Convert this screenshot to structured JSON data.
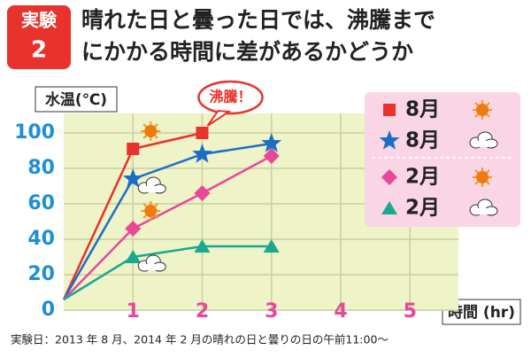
{
  "header": {
    "badge": "実験",
    "badge_number": "2",
    "title_lines": [
      "晴れた日と曇った日では、沸騰まで",
      "にかかる時間に差があるかどうか"
    ]
  },
  "chart_data": {
    "type": "line",
    "y_label": "水温(℃)",
    "x_label": "時間 (hr)",
    "annotation": "沸騰！",
    "footnote": "実験日：2013 年 8 月、2014 年 2 月の晴れの日と曇りの日の午前11:00～",
    "series": [
      {
        "name": "8月",
        "color": "#e8322b",
        "marker": "square",
        "weather": "sunny",
        "x": [
          0,
          1,
          2
        ],
        "values": [
          6,
          91,
          100
        ]
      },
      {
        "name": "8月",
        "color": "#1a6fc4",
        "marker": "star",
        "weather": "cloudy",
        "x": [
          0,
          1,
          2,
          3
        ],
        "values": [
          6,
          74,
          88,
          94
        ]
      },
      {
        "name": "2月",
        "color": "#e8479a",
        "marker": "diamond",
        "weather": "sunny",
        "x": [
          0,
          1,
          2,
          3
        ],
        "values": [
          6,
          46,
          66,
          87
        ]
      },
      {
        "name": "2月",
        "color": "#1aa88f",
        "marker": "triangle",
        "weather": "cloudy",
        "x": [
          0,
          1,
          2,
          3
        ],
        "values": [
          6,
          30,
          36,
          36
        ]
      }
    ],
    "xlim": [
      0,
      5.7
    ],
    "ylim": [
      0,
      111
    ],
    "xticks": [
      1,
      2,
      3,
      4,
      5
    ],
    "yticks": [
      0,
      20,
      40,
      60,
      80,
      100
    ],
    "grid": true
  }
}
